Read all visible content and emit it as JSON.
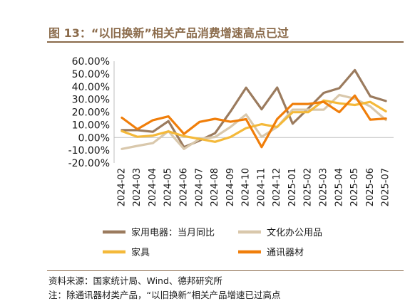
{
  "title": "图 13：“以旧换新”相关产品消费增速高点已过",
  "footnotes": {
    "source": "资料来源：国家统计局、Wind、德邦研究所",
    "note": "注：除通讯器材类产品，“以旧换新”相关产品增速已过高点"
  },
  "chart_data": {
    "type": "line",
    "title": "",
    "xlabel": "",
    "ylabel": "",
    "ylim": [
      -20,
      60
    ],
    "yticks": [
      "60.00%",
      "50.00%",
      "40.00%",
      "30.00%",
      "20.00%",
      "10.00%",
      "0.00%",
      "-10.00%",
      "-20.00%"
    ],
    "grid": false,
    "legend_position": "bottom",
    "categories": [
      "2024-02",
      "2024-03",
      "2024-04",
      "2024-05",
      "2024-06",
      "2024-07",
      "2024-08",
      "2024-09",
      "2024-10",
      "2024-11",
      "2024-12",
      "2025-01",
      "2025-02",
      "2025-03",
      "2025-04",
      "2025-05",
      "2025-06",
      "2025-07"
    ],
    "series": [
      {
        "name": "家用电器：当月同比",
        "color": "#9b7b5e",
        "values": [
          5.8,
          5.8,
          4.5,
          12.9,
          -7.6,
          -2.4,
          3.4,
          20.5,
          39.2,
          22.2,
          39.3,
          10.9,
          22.8,
          35.1,
          38.8,
          53.0,
          32.4,
          28.7
        ]
      },
      {
        "name": "文化办公用品",
        "color": "#d9c8ac",
        "values": [
          -9.0,
          -6.6,
          -4.4,
          5.0,
          -9.0,
          -1.1,
          0.4,
          8.3,
          18.1,
          0.5,
          8.3,
          21.9,
          21.9,
          21.9,
          33.5,
          30.5,
          24.4,
          13.8
        ]
      },
      {
        "name": "家具",
        "color": "#f4b93a",
        "values": [
          5.0,
          0.6,
          1.5,
          4.8,
          1.1,
          -1.1,
          -3.4,
          0.4,
          7.4,
          10.5,
          8.3,
          19.9,
          19.9,
          29.1,
          26.9,
          25.6,
          28.0,
          20.6
        ]
      },
      {
        "name": "通讯器材",
        "color": "#f07e0a",
        "values": [
          15.6,
          6.6,
          13.6,
          16.6,
          2.8,
          12.3,
          14.7,
          12.4,
          14.4,
          -7.5,
          14.5,
          26.4,
          26.4,
          28.0,
          19.9,
          33.0,
          14.0,
          14.9
        ]
      }
    ]
  }
}
